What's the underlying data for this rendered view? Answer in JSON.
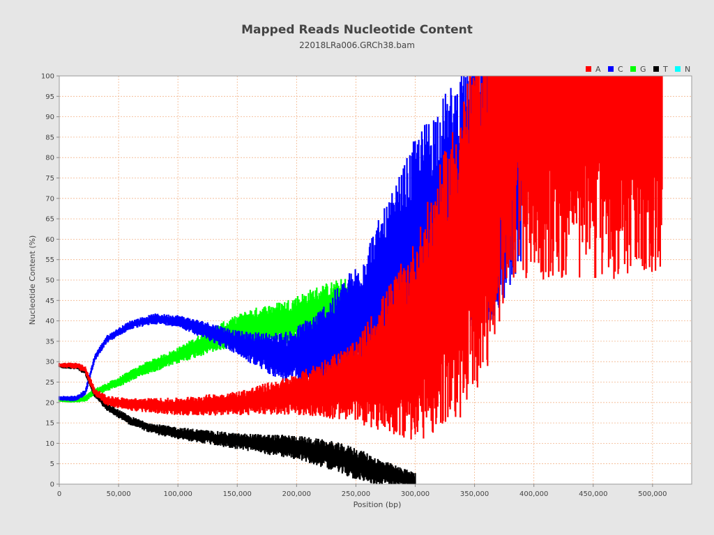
{
  "chart_data": {
    "type": "line",
    "title": "Mapped Reads Nucleotide Content",
    "subtitle": "22018LRa006.GRCh38.bam",
    "xlabel": "Position (bp)",
    "ylabel": "Nucleotide Content (%)",
    "xlim": [
      0,
      533000
    ],
    "ylim": [
      0,
      100
    ],
    "x_ticks": [
      0,
      50000,
      100000,
      150000,
      200000,
      250000,
      300000,
      350000,
      400000,
      450000,
      500000
    ],
    "x_tick_labels": [
      "0",
      "50,000",
      "100,000",
      "150,000",
      "200,000",
      "250,000",
      "300,000",
      "350,000",
      "400,000",
      "450,000",
      "500,000"
    ],
    "y_ticks": [
      0,
      5,
      10,
      15,
      20,
      25,
      30,
      35,
      40,
      45,
      50,
      55,
      60,
      65,
      70,
      75,
      80,
      85,
      90,
      95,
      100
    ],
    "grid": true,
    "legend_position": "top-right",
    "series": [
      {
        "name": "A",
        "color": "#ff0000",
        "trend": [
          [
            0,
            29.2
          ],
          [
            15000,
            29.0
          ],
          [
            22000,
            28.0
          ],
          [
            30000,
            22.5
          ],
          [
            40000,
            20.5
          ],
          [
            60000,
            19.5
          ],
          [
            100000,
            19.0
          ],
          [
            150000,
            19.8
          ],
          [
            200000,
            22.0
          ],
          [
            250000,
            25.0
          ],
          [
            300000,
            35.0
          ],
          [
            330000,
            50.0
          ],
          [
            360000,
            70.0
          ],
          [
            380000,
            100.0
          ],
          [
            508000,
            100.0
          ]
        ],
        "spread": [
          [
            0,
            0.6
          ],
          [
            150000,
            3.0
          ],
          [
            200000,
            5.0
          ],
          [
            250000,
            10.0
          ],
          [
            300000,
            25.0
          ],
          [
            340000,
            40.0
          ],
          [
            380000,
            50.0
          ],
          [
            508000,
            50.0
          ]
        ]
      },
      {
        "name": "C",
        "color": "#0000ff",
        "trend": [
          [
            0,
            21.0
          ],
          [
            15000,
            21.0
          ],
          [
            22000,
            22.5
          ],
          [
            30000,
            31.0
          ],
          [
            40000,
            35.5
          ],
          [
            60000,
            39.0
          ],
          [
            80000,
            40.5
          ],
          [
            100000,
            40.0
          ],
          [
            130000,
            37.0
          ],
          [
            160000,
            33.5
          ],
          [
            190000,
            31.0
          ],
          [
            220000,
            33.0
          ],
          [
            250000,
            39.0
          ],
          [
            280000,
            50.0
          ],
          [
            300000,
            60.0
          ],
          [
            320000,
            65.0
          ],
          [
            350000,
            70.0
          ],
          [
            370000,
            80.0
          ],
          [
            389000,
            92.0
          ]
        ],
        "spread": [
          [
            0,
            0.6
          ],
          [
            100000,
            1.5
          ],
          [
            150000,
            3.0
          ],
          [
            200000,
            7.0
          ],
          [
            250000,
            15.0
          ],
          [
            300000,
            25.0
          ],
          [
            350000,
            35.0
          ],
          [
            389000,
            40.0
          ]
        ]
      },
      {
        "name": "G",
        "color": "#00ff00",
        "trend": [
          [
            0,
            20.6
          ],
          [
            15000,
            20.6
          ],
          [
            22000,
            21.0
          ],
          [
            30000,
            22.5
          ],
          [
            50000,
            25.0
          ],
          [
            70000,
            28.0
          ],
          [
            100000,
            31.5
          ],
          [
            130000,
            35.5
          ],
          [
            160000,
            38.5
          ],
          [
            190000,
            39.5
          ],
          [
            220000,
            42.0
          ],
          [
            245000,
            43.0
          ]
        ],
        "spread": [
          [
            0,
            0.5
          ],
          [
            100000,
            2.0
          ],
          [
            150000,
            4.0
          ],
          [
            200000,
            6.0
          ],
          [
            245000,
            8.0
          ]
        ]
      },
      {
        "name": "T",
        "color": "#000000",
        "trend": [
          [
            0,
            29.0
          ],
          [
            15000,
            28.8
          ],
          [
            22000,
            27.5
          ],
          [
            30000,
            22.0
          ],
          [
            40000,
            19.0
          ],
          [
            60000,
            15.5
          ],
          [
            80000,
            13.5
          ],
          [
            100000,
            12.5
          ],
          [
            150000,
            10.5
          ],
          [
            200000,
            9.0
          ],
          [
            230000,
            7.0
          ],
          [
            250000,
            5.0
          ],
          [
            270000,
            3.0
          ],
          [
            290000,
            1.5
          ],
          [
            300000,
            0.8
          ]
        ],
        "spread": [
          [
            0,
            0.6
          ],
          [
            100000,
            1.5
          ],
          [
            150000,
            2.0
          ],
          [
            200000,
            3.0
          ],
          [
            250000,
            4.0
          ],
          [
            300000,
            2.0
          ]
        ]
      },
      {
        "name": "N",
        "color": "#00ffff",
        "trend": [
          [
            0,
            0.2
          ],
          [
            260000,
            0.2
          ]
        ],
        "spread": [
          [
            0,
            0.0
          ],
          [
            260000,
            0.0
          ]
        ]
      }
    ]
  }
}
